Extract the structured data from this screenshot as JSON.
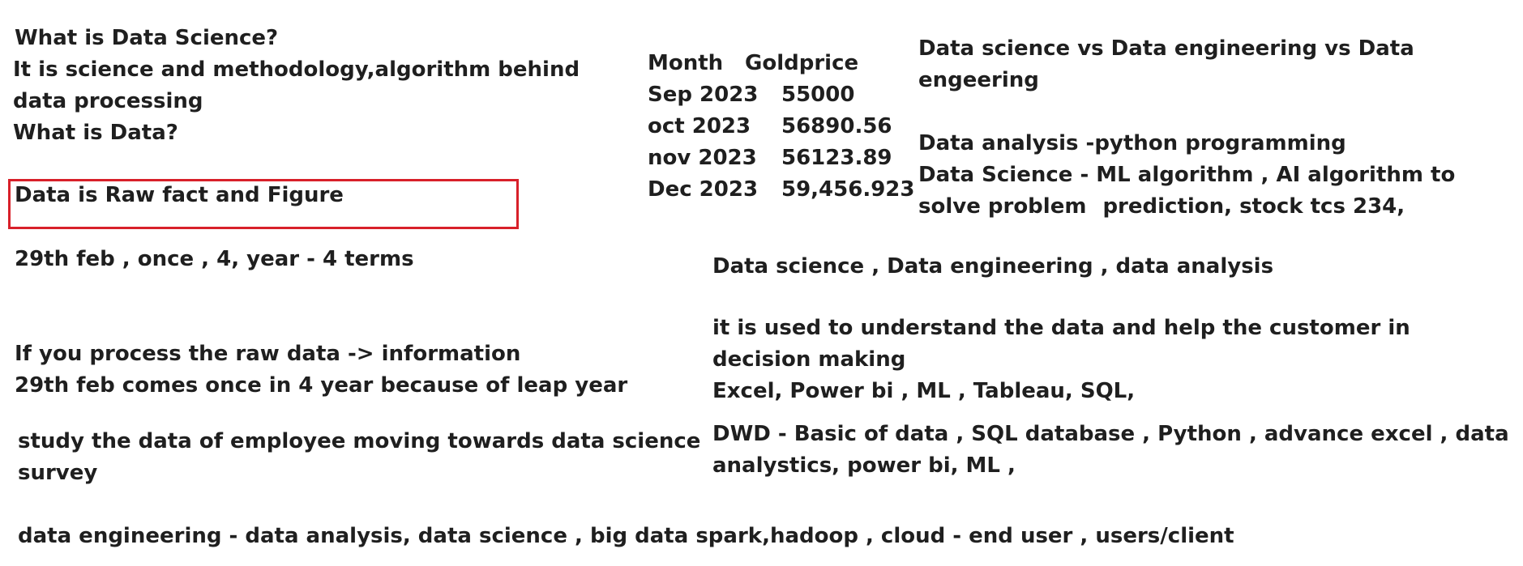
{
  "left": {
    "q1": "What is Data Science?",
    "a1_line1": "It is science and methodology,algorithm behind",
    "a1_line2": "data processing",
    "q2": "What is Data?",
    "highlight": "Data is Raw fact and Figure",
    "feb": "29th feb , once  , 4, year - 4 terms",
    "process_line1": "If you process the raw data -> information",
    "process_line2": "29th feb comes once in 4 year because of leap year",
    "study_line1": "study the data of employee moving towards data science",
    "study_line2": "survey",
    "bottom": "data engineering - data analysis, data science , big data spark,hadoop , cloud - end user , users/client"
  },
  "gold_table": {
    "header": {
      "month": "Month",
      "price": "Goldprice"
    },
    "rows": [
      {
        "month": "Sep 2023",
        "price": "55000"
      },
      {
        "month": "oct 2023",
        "price": "56890.56"
      },
      {
        "month": "nov 2023",
        "price": "56123.89"
      },
      {
        "month": "Dec 2023",
        "price": "59,456.923"
      }
    ]
  },
  "right": {
    "vs_line1": "Data science vs Data engineering vs Data",
    "vs_line2": "engeering",
    "analysis": "Data analysis -python programming",
    "science_line1": "Data Science - ML algorithm , AI algorithm to",
    "science_line2a": "solve problem",
    "science_line2b": "prediction, stock tcs 234,",
    "fields": "Data science , Data engineering , data analysis",
    "used_line1": "it is used to understand the data and help the customer in",
    "used_line2": "decision making",
    "tools": "Excel, Power bi , ML , Tableau, SQL,",
    "dwd_line1": "DWD  - Basic of data , SQL database , Python , advance excel , data",
    "dwd_line2": "analystics, power bi, ML ,"
  },
  "colors": {
    "text": "#1f1f1f",
    "highlight_border": "#d8202a"
  }
}
